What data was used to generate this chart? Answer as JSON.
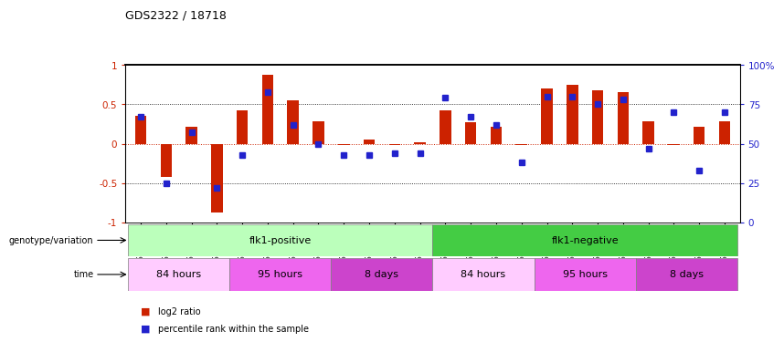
{
  "title": "GDS2322 / 18718",
  "samples": [
    "GSM86370",
    "GSM86371",
    "GSM86372",
    "GSM86373",
    "GSM86362",
    "GSM86363",
    "GSM86364",
    "GSM86365",
    "GSM86354",
    "GSM86355",
    "GSM86356",
    "GSM86357",
    "GSM86374",
    "GSM86375",
    "GSM86376",
    "GSM86377",
    "GSM86366",
    "GSM86367",
    "GSM86368",
    "GSM86369",
    "GSM86358",
    "GSM86359",
    "GSM86360",
    "GSM86361"
  ],
  "log2_ratio": [
    0.35,
    -0.42,
    0.21,
    -0.88,
    0.42,
    0.88,
    0.55,
    0.28,
    -0.02,
    0.05,
    -0.02,
    0.02,
    0.42,
    0.27,
    0.22,
    -0.02,
    0.7,
    0.75,
    0.68,
    0.65,
    0.28,
    -0.02,
    0.22,
    0.28
  ],
  "percentile": [
    67,
    25,
    57,
    22,
    43,
    83,
    62,
    50,
    43,
    43,
    44,
    44,
    79,
    67,
    62,
    38,
    80,
    80,
    75,
    78,
    47,
    70,
    33,
    70
  ],
  "genotype_groups": [
    {
      "label": "flk1-positive",
      "start": 0,
      "end": 11,
      "color": "#bbffbb"
    },
    {
      "label": "flk1-negative",
      "start": 12,
      "end": 23,
      "color": "#44cc44"
    }
  ],
  "time_groups": [
    {
      "label": "84 hours",
      "start": 0,
      "end": 3,
      "color": "#ffccff"
    },
    {
      "label": "95 hours",
      "start": 4,
      "end": 7,
      "color": "#ee66ee"
    },
    {
      "label": "8 days",
      "start": 8,
      "end": 11,
      "color": "#cc44cc"
    },
    {
      "label": "84 hours",
      "start": 12,
      "end": 15,
      "color": "#ffccff"
    },
    {
      "label": "95 hours",
      "start": 16,
      "end": 19,
      "color": "#ee66ee"
    },
    {
      "label": "8 days",
      "start": 20,
      "end": 23,
      "color": "#cc44cc"
    }
  ],
  "bar_color": "#cc2200",
  "dot_color": "#2222cc",
  "ylim": [
    -1,
    1
  ],
  "yticks_left": [
    -1,
    -0.5,
    0,
    0.5,
    1
  ],
  "yticks_right": [
    0,
    25,
    50,
    75,
    100
  ],
  "hlines": [
    -0.5,
    0,
    0.5
  ],
  "legend_items": [
    {
      "label": "log2 ratio",
      "color": "#cc2200"
    },
    {
      "label": "percentile rank within the sample",
      "color": "#2222cc"
    }
  ],
  "left_labels": [
    "genotype/variation",
    "time"
  ],
  "bar_width": 0.45
}
